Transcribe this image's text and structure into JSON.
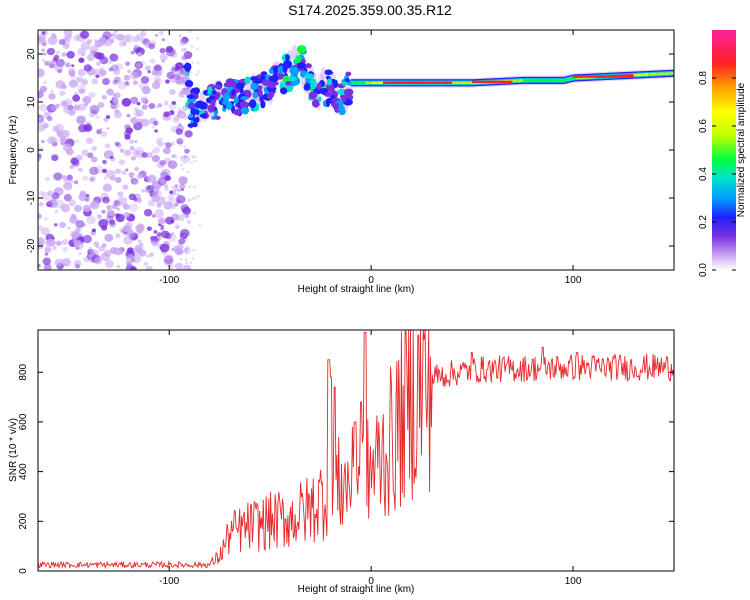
{
  "title": "S174.2025.359.00.35.R12",
  "chart_data": [
    {
      "type": "heatmap",
      "xlabel": "Height of straight line (km)",
      "ylabel": "Frequency (Hz)",
      "xlim": [
        -165,
        150
      ],
      "ylim": [
        -25,
        25
      ],
      "xticks": [
        -100,
        0,
        100
      ],
      "yticks": [
        -20,
        -10,
        0,
        10,
        20
      ],
      "colorbar": {
        "label": "Normalized spectral amplitude",
        "range": [
          0.0,
          1.0
        ],
        "ticks": [
          "0.0",
          "0.2",
          "0.4",
          "0.6",
          "0.8"
        ],
        "colors": [
          "#ffffff",
          "#c9a7f3",
          "#7a2fe0",
          "#2020ff",
          "#00a0ff",
          "#00e0d0",
          "#00ff40",
          "#c0ff00",
          "#ffff00",
          "#ffa000",
          "#ff2020",
          "#ff20a0"
        ]
      },
      "carrier_track": [
        {
          "x": -90,
          "f": 8.5
        },
        {
          "x": -80,
          "f": 9.5
        },
        {
          "x": -70,
          "f": 11
        },
        {
          "x": -60,
          "f": 11.5
        },
        {
          "x": -50,
          "f": 13
        },
        {
          "x": -40,
          "f": 16.5
        },
        {
          "x": -35,
          "f": 19
        },
        {
          "x": -30,
          "f": 13
        },
        {
          "x": -25,
          "f": 12.5
        },
        {
          "x": -20,
          "f": 13
        },
        {
          "x": -15,
          "f": 11
        },
        {
          "x": -10,
          "f": 14
        },
        {
          "x": 0,
          "f": 14
        },
        {
          "x": 25,
          "f": 14
        },
        {
          "x": 50,
          "f": 14
        },
        {
          "x": 75,
          "f": 14.5
        },
        {
          "x": 95,
          "f": 14.5
        },
        {
          "x": 100,
          "f": 15
        },
        {
          "x": 125,
          "f": 15.5
        },
        {
          "x": 150,
          "f": 16
        }
      ]
    },
    {
      "type": "line",
      "xlabel": "Height of straight line (km)",
      "ylabel": "SNR (10 * v/v)",
      "xlim": [
        -165,
        150
      ],
      "ylim": [
        0,
        970
      ],
      "xticks": [
        -100,
        0,
        100
      ],
      "yticks": [
        0,
        200,
        400,
        600,
        800
      ],
      "series": [
        {
          "name": "SNR",
          "color": "#e8282a",
          "trend": [
            {
              "x": -165,
              "y": 25
            },
            {
              "x": -80,
              "y": 25
            },
            {
              "x": -75,
              "y": 60
            },
            {
              "x": -70,
              "y": 150
            },
            {
              "x": -60,
              "y": 180
            },
            {
              "x": -50,
              "y": 200
            },
            {
              "x": -40,
              "y": 210
            },
            {
              "x": -30,
              "y": 250
            },
            {
              "x": -20,
              "y": 330
            },
            {
              "x": -10,
              "y": 360
            },
            {
              "x": 0,
              "y": 400
            },
            {
              "x": 10,
              "y": 520
            },
            {
              "x": 20,
              "y": 700
            },
            {
              "x": 30,
              "y": 780
            },
            {
              "x": 50,
              "y": 810
            },
            {
              "x": 100,
              "y": 820
            },
            {
              "x": 150,
              "y": 820
            }
          ],
          "peaks": [
            {
              "x": -21,
              "y": 850
            },
            {
              "x": -20,
              "y": 780
            },
            {
              "x": -18,
              "y": 740
            },
            {
              "x": -3,
              "y": 960
            },
            {
              "x": -5,
              "y": 680
            },
            {
              "x": -8,
              "y": 600
            },
            {
              "x": 102,
              "y": 880
            },
            {
              "x": 85,
              "y": 900
            },
            {
              "x": 50,
              "y": 880
            }
          ]
        }
      ]
    }
  ]
}
